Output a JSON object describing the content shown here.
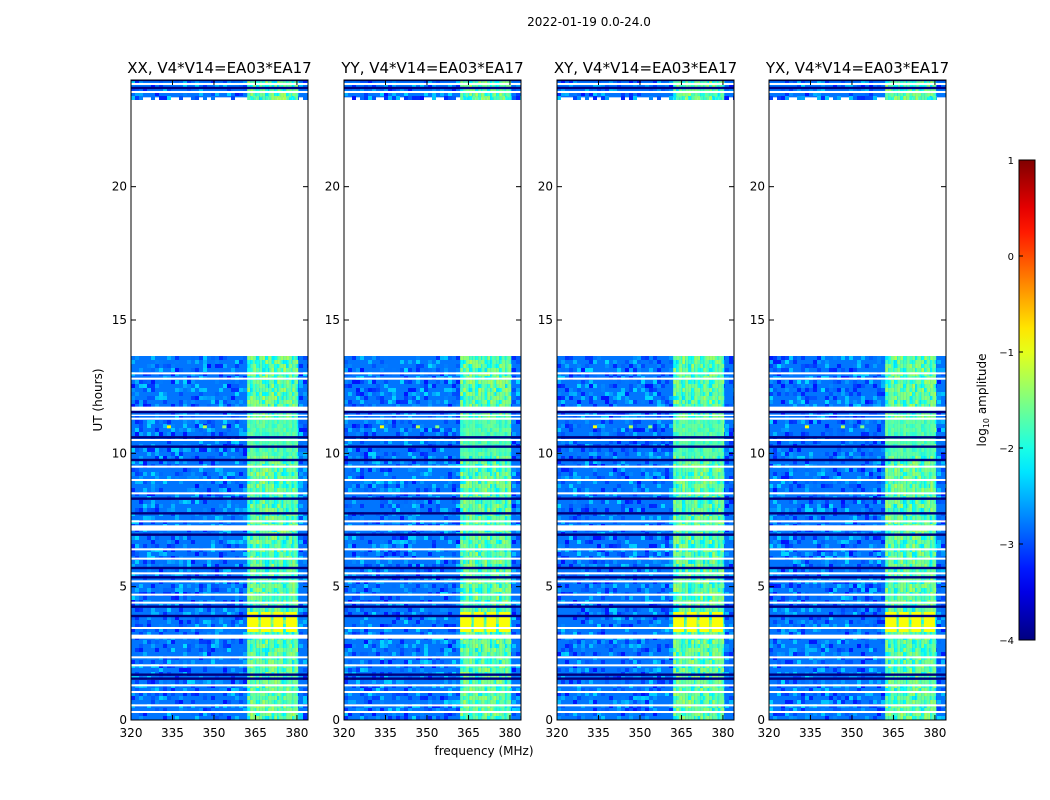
{
  "chart_data": {
    "type": "heatmap",
    "suptitle": "2022-01-19 0.0-24.0",
    "xlabel": "frequency (MHz)",
    "ylabel": "UT (hours)",
    "xlim": [
      320,
      384
    ],
    "ylim": [
      0,
      24
    ],
    "xticks": [
      320,
      335,
      350,
      365,
      380
    ],
    "yticks": [
      0,
      5,
      10,
      15,
      20
    ],
    "panels": [
      {
        "title": "XX, V4*V14=EA03*EA17",
        "bright_bands": true
      },
      {
        "title": "YY, V4*V14=EA03*EA17",
        "bright_bands": true
      },
      {
        "title": "XY, V4*V14=EA03*EA17",
        "bright_bands": true
      },
      {
        "title": "YX, V4*V14=EA03*EA17",
        "bright_bands": true
      }
    ],
    "data_gaps_hours": [
      [
        22.2,
        23.35
      ],
      [
        13.65,
        22.2
      ]
    ],
    "white_lines_hours": [
      0.3,
      0.55,
      1.05,
      1.3,
      2.05,
      2.35,
      3.1,
      3.45,
      4.4,
      4.7,
      5.2,
      5.5,
      6.05,
      6.4,
      7.2,
      7.45,
      8.5,
      9.0,
      9.5,
      10.5,
      11.3,
      12.8,
      13.0,
      22.6,
      23.55,
      23.85
    ],
    "dark_lines_hours": [
      1.55,
      1.7,
      3.9,
      4.25,
      5.35,
      5.7,
      6.95,
      7.75,
      8.3,
      9.75,
      10.25,
      10.6,
      11.55,
      23.7,
      24.0
    ],
    "colorbar": {
      "label_prefix": "log",
      "label_subscript": "10",
      "label_suffix": " amplitude",
      "range": [
        -4,
        1
      ],
      "ticks": [
        "1",
        "0",
        "−1",
        "−2",
        "−3",
        "−4"
      ],
      "tick_values": [
        1,
        0,
        -1,
        -2,
        -3,
        -4
      ]
    },
    "colormap": "jet",
    "colors": {
      "white": "#ffffff",
      "frame": "#000000"
    }
  }
}
